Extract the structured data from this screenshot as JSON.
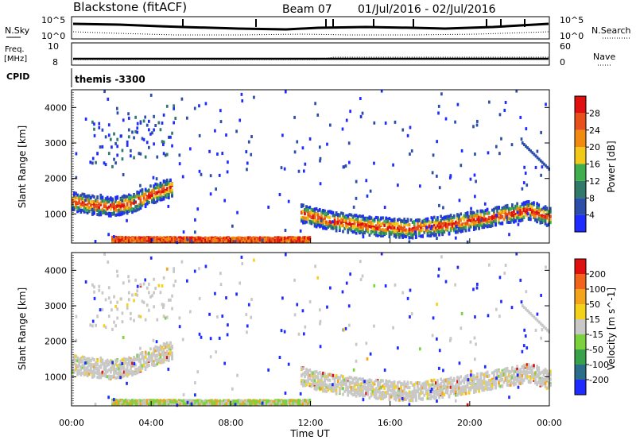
{
  "header": {
    "station": "Blackstone (fitACF)",
    "beam": "Beam 07",
    "date_range": "01/Jul/2016 - 02/Jul/2016"
  },
  "top_panels": {
    "nsky_label": "N.Sky",
    "nsky_ticks": [
      "10^5",
      "10^0"
    ],
    "nsearch_label": "N.Search",
    "nsearch_ticks": [
      "10^5",
      "10^0"
    ],
    "freq_label_line1": "Freq.",
    "freq_label_line2": "[MHz]",
    "freq_ticks": [
      "10",
      "8"
    ],
    "nave_label": "Nave",
    "nave_ticks": [
      "60",
      "0"
    ],
    "cpid_label": "CPID",
    "cpid_value": "themis -3300"
  },
  "chart_data": [
    {
      "type": "heatmap",
      "name": "power",
      "ylabel": "Slant Range [km]",
      "y_ticks": [
        "1000",
        "2000",
        "3000",
        "4000"
      ],
      "ylim": [
        180,
        4500
      ],
      "xlim": [
        0,
        24
      ],
      "colorbar_label": "Power [dB]",
      "colorbar_ticks": [
        "4",
        "8",
        "12",
        "16",
        "20",
        "24",
        "28"
      ],
      "colorbar_colors": [
        "#1e2cff",
        "#2c4ea8",
        "#2f7a6a",
        "#3fae4c",
        "#f2c81a",
        "#f08a10",
        "#e8501a",
        "#e01010"
      ],
      "features": [
        {
          "label": "evening band",
          "t": [
            0.0,
            1.0,
            2.0,
            3.0,
            4.0,
            5.0
          ],
          "range": [
            1350,
            1250,
            1200,
            1300,
            1550,
            1750
          ]
        },
        {
          "label": "near-range ground",
          "t": [
            2.0,
            6.0,
            10.0,
            12.0
          ],
          "range": [
            280,
            270,
            270,
            280
          ]
        },
        {
          "label": "morning band",
          "t": [
            11.5,
            13.0,
            15.0,
            17.0,
            19.0,
            21.0,
            23.0,
            24.0
          ],
          "range": [
            1000,
            800,
            650,
            580,
            700,
            900,
            1100,
            900
          ]
        }
      ]
    },
    {
      "type": "heatmap",
      "name": "velocity",
      "ylabel": "Slant Range [km]",
      "y_ticks": [
        "1000",
        "2000",
        "3000",
        "4000"
      ],
      "ylim": [
        180,
        4500
      ],
      "xlim": [
        0,
        24
      ],
      "xlabel": "Time UT",
      "x_ticks": [
        "00:00",
        "04:00",
        "08:00",
        "12:00",
        "16:00",
        "20:00",
        "00:00"
      ],
      "colorbar_label": "Velocity [m s^-1]",
      "colorbar_ticks": [
        "200",
        "100",
        "50",
        "15",
        "-15",
        "-50",
        "-100",
        "-200"
      ],
      "colorbar_colors": [
        "#1e2cff",
        "#2a6e8a",
        "#37a24a",
        "#7cd23c",
        "#c8c8c8",
        "#f4d21c",
        "#f4a41c",
        "#f0641c",
        "#e01010"
      ]
    }
  ]
}
